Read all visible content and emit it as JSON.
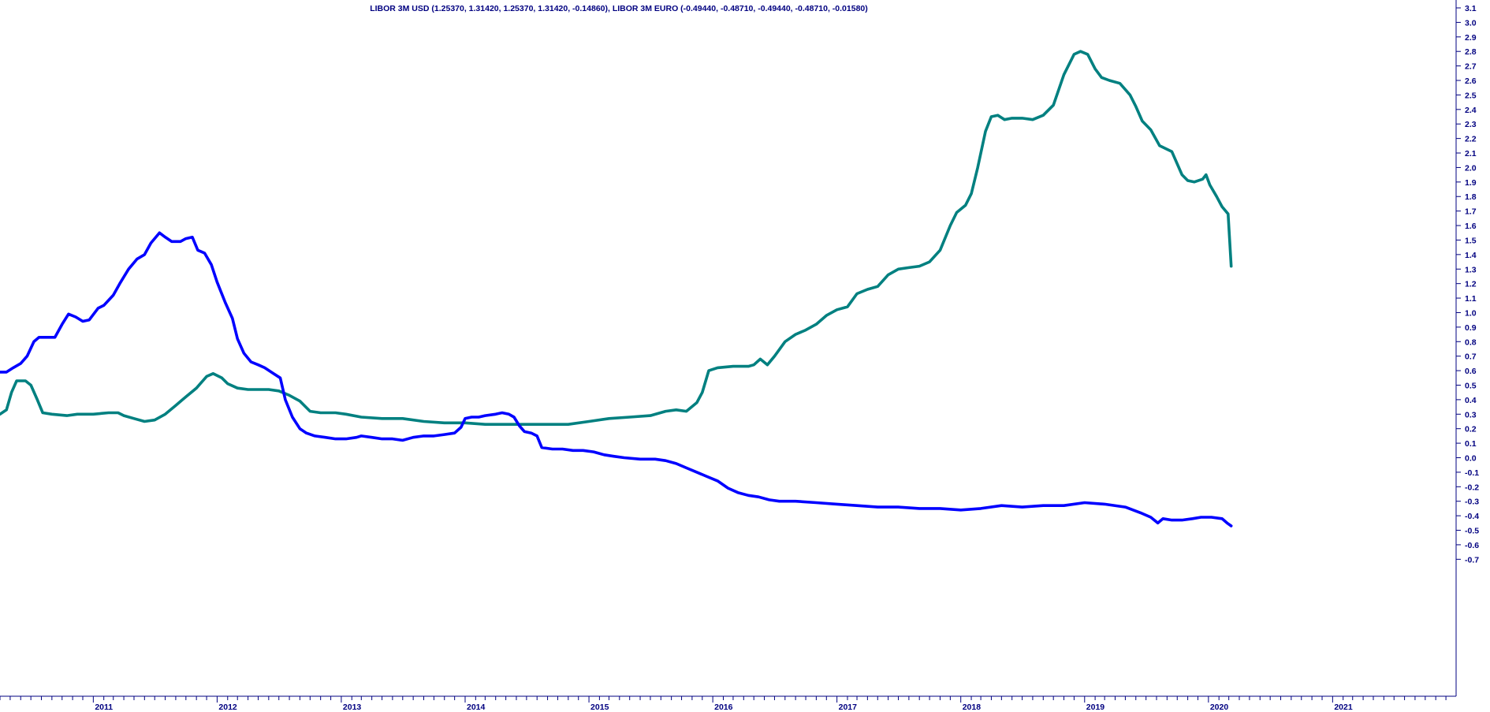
{
  "chart_data": {
    "type": "line",
    "title": "LIBOR 3M USD (1.25370, 1.31420, 1.25370, 1.31420, -0.14860), LIBOR 3M EURO (-0.49440, -0.48710, -0.49440, -0.48710, -0.01580)",
    "xlabel": "",
    "ylabel": "",
    "ylim": [
      -0.8,
      3.15
    ],
    "xlim": [
      "2010-04-01",
      "2021-12-31"
    ],
    "grid": false,
    "y_ticks": [
      "3.1",
      "3.0",
      "2.9",
      "2.8",
      "2.7",
      "2.6",
      "2.5",
      "2.4",
      "2.3",
      "2.2",
      "2.1",
      "2.0",
      "1.9",
      "1.8",
      "1.7",
      "1.6",
      "1.5",
      "1.4",
      "1.3",
      "1.2",
      "1.1",
      "1.0",
      "0.9",
      "0.8",
      "0.7",
      "0.6",
      "0.5",
      "0.4",
      "0.3",
      "0.2",
      "0.1",
      "0.0",
      "-0.1",
      "-0.2",
      "-0.3",
      "-0.4",
      "-0.5",
      "-0.6",
      "-0.7"
    ],
    "x_ticks": [
      "2011",
      "2012",
      "2013",
      "2014",
      "2015",
      "2016",
      "2017",
      "2018",
      "2019",
      "2020",
      "2021"
    ],
    "series": [
      {
        "name": "LIBOR 3M USD",
        "color": "#008080",
        "points": [
          [
            "2010-04-01",
            0.3
          ],
          [
            "2010-04-20",
            0.33
          ],
          [
            "2010-05-05",
            0.45
          ],
          [
            "2010-05-20",
            0.53
          ],
          [
            "2010-06-15",
            0.53
          ],
          [
            "2010-07-01",
            0.5
          ],
          [
            "2010-07-20",
            0.4
          ],
          [
            "2010-08-05",
            0.31
          ],
          [
            "2010-09-01",
            0.3
          ],
          [
            "2010-10-15",
            0.29
          ],
          [
            "2010-11-15",
            0.3
          ],
          [
            "2011-01-01",
            0.3
          ],
          [
            "2011-02-15",
            0.31
          ],
          [
            "2011-03-15",
            0.31
          ],
          [
            "2011-04-01",
            0.29
          ],
          [
            "2011-05-01",
            0.27
          ],
          [
            "2011-06-01",
            0.25
          ],
          [
            "2011-07-01",
            0.26
          ],
          [
            "2011-08-01",
            0.3
          ],
          [
            "2011-09-01",
            0.36
          ],
          [
            "2011-10-01",
            0.42
          ],
          [
            "2011-11-01",
            0.48
          ],
          [
            "2011-12-01",
            0.56
          ],
          [
            "2011-12-20",
            0.58
          ],
          [
            "2012-01-15",
            0.55
          ],
          [
            "2012-02-01",
            0.51
          ],
          [
            "2012-03-01",
            0.48
          ],
          [
            "2012-04-01",
            0.47
          ],
          [
            "2012-05-01",
            0.47
          ],
          [
            "2012-06-01",
            0.47
          ],
          [
            "2012-07-01",
            0.46
          ],
          [
            "2012-08-01",
            0.43
          ],
          [
            "2012-09-01",
            0.39
          ],
          [
            "2012-10-01",
            0.32
          ],
          [
            "2012-11-01",
            0.31
          ],
          [
            "2012-12-15",
            0.31
          ],
          [
            "2013-01-15",
            0.3
          ],
          [
            "2013-03-01",
            0.28
          ],
          [
            "2013-05-01",
            0.27
          ],
          [
            "2013-07-01",
            0.27
          ],
          [
            "2013-09-01",
            0.25
          ],
          [
            "2013-11-01",
            0.24
          ],
          [
            "2014-01-01",
            0.24
          ],
          [
            "2014-03-01",
            0.23
          ],
          [
            "2014-05-01",
            0.23
          ],
          [
            "2014-07-01",
            0.23
          ],
          [
            "2014-09-01",
            0.23
          ],
          [
            "2014-11-01",
            0.23
          ],
          [
            "2015-01-01",
            0.25
          ],
          [
            "2015-03-01",
            0.27
          ],
          [
            "2015-05-01",
            0.28
          ],
          [
            "2015-07-01",
            0.29
          ],
          [
            "2015-08-15",
            0.32
          ],
          [
            "2015-09-15",
            0.33
          ],
          [
            "2015-10-15",
            0.32
          ],
          [
            "2015-11-15",
            0.38
          ],
          [
            "2015-12-01",
            0.45
          ],
          [
            "2015-12-20",
            0.6
          ],
          [
            "2016-01-15",
            0.62
          ],
          [
            "2016-03-01",
            0.63
          ],
          [
            "2016-04-15",
            0.63
          ],
          [
            "2016-05-01",
            0.64
          ],
          [
            "2016-05-20",
            0.68
          ],
          [
            "2016-06-10",
            0.64
          ],
          [
            "2016-07-01",
            0.7
          ],
          [
            "2016-08-01",
            0.8
          ],
          [
            "2016-09-01",
            0.85
          ],
          [
            "2016-10-01",
            0.88
          ],
          [
            "2016-11-01",
            0.92
          ],
          [
            "2016-12-01",
            0.98
          ],
          [
            "2017-01-01",
            1.02
          ],
          [
            "2017-02-01",
            1.04
          ],
          [
            "2017-03-01",
            1.13
          ],
          [
            "2017-04-01",
            1.16
          ],
          [
            "2017-05-01",
            1.18
          ],
          [
            "2017-06-01",
            1.26
          ],
          [
            "2017-07-01",
            1.3
          ],
          [
            "2017-08-01",
            1.31
          ],
          [
            "2017-09-01",
            1.32
          ],
          [
            "2017-10-01",
            1.35
          ],
          [
            "2017-11-01",
            1.43
          ],
          [
            "2017-12-01",
            1.6
          ],
          [
            "2017-12-20",
            1.69
          ],
          [
            "2018-01-15",
            1.74
          ],
          [
            "2018-02-01",
            1.82
          ],
          [
            "2018-02-20",
            2.0
          ],
          [
            "2018-03-15",
            2.25
          ],
          [
            "2018-04-01",
            2.35
          ],
          [
            "2018-04-20",
            2.36
          ],
          [
            "2018-05-10",
            2.33
          ],
          [
            "2018-06-01",
            2.34
          ],
          [
            "2018-07-01",
            2.34
          ],
          [
            "2018-08-01",
            2.33
          ],
          [
            "2018-09-01",
            2.36
          ],
          [
            "2018-10-01",
            2.43
          ],
          [
            "2018-11-01",
            2.64
          ],
          [
            "2018-12-01",
            2.78
          ],
          [
            "2018-12-20",
            2.8
          ],
          [
            "2019-01-10",
            2.78
          ],
          [
            "2019-02-01",
            2.68
          ],
          [
            "2019-02-20",
            2.62
          ],
          [
            "2019-03-15",
            2.6
          ],
          [
            "2019-04-15",
            2.58
          ],
          [
            "2019-05-15",
            2.5
          ],
          [
            "2019-06-01",
            2.42
          ],
          [
            "2019-06-20",
            2.32
          ],
          [
            "2019-07-15",
            2.26
          ],
          [
            "2019-08-10",
            2.15
          ],
          [
            "2019-09-15",
            2.11
          ],
          [
            "2019-10-15",
            1.95
          ],
          [
            "2019-11-01",
            1.91
          ],
          [
            "2019-11-20",
            1.9
          ],
          [
            "2019-12-15",
            1.92
          ],
          [
            "2019-12-25",
            1.95
          ],
          [
            "2020-01-05",
            1.88
          ],
          [
            "2020-01-25",
            1.8
          ],
          [
            "2020-02-10",
            1.73
          ],
          [
            "2020-02-28",
            1.68
          ],
          [
            "2020-03-08",
            1.32
          ]
        ]
      },
      {
        "name": "LIBOR 3M EURO",
        "color": "#0000ff",
        "points": [
          [
            "2010-04-01",
            0.59
          ],
          [
            "2010-04-20",
            0.59
          ],
          [
            "2010-05-10",
            0.62
          ],
          [
            "2010-06-01",
            0.65
          ],
          [
            "2010-06-20",
            0.7
          ],
          [
            "2010-07-10",
            0.8
          ],
          [
            "2010-07-25",
            0.83
          ],
          [
            "2010-08-15",
            0.83
          ],
          [
            "2010-09-10",
            0.83
          ],
          [
            "2010-10-01",
            0.92
          ],
          [
            "2010-10-20",
            0.99
          ],
          [
            "2010-11-10",
            0.97
          ],
          [
            "2010-12-01",
            0.94
          ],
          [
            "2010-12-20",
            0.95
          ],
          [
            "2011-01-15",
            1.03
          ],
          [
            "2011-02-01",
            1.05
          ],
          [
            "2011-03-01",
            1.12
          ],
          [
            "2011-03-20",
            1.2
          ],
          [
            "2011-04-15",
            1.3
          ],
          [
            "2011-05-10",
            1.37
          ],
          [
            "2011-06-01",
            1.4
          ],
          [
            "2011-06-20",
            1.48
          ],
          [
            "2011-07-15",
            1.55
          ],
          [
            "2011-08-01",
            1.52
          ],
          [
            "2011-08-20",
            1.49
          ],
          [
            "2011-09-15",
            1.49
          ],
          [
            "2011-10-01",
            1.51
          ],
          [
            "2011-10-20",
            1.52
          ],
          [
            "2011-11-05",
            1.43
          ],
          [
            "2011-11-25",
            1.41
          ],
          [
            "2011-12-15",
            1.33
          ],
          [
            "2012-01-01",
            1.21
          ],
          [
            "2012-01-25",
            1.07
          ],
          [
            "2012-02-15",
            0.96
          ],
          [
            "2012-03-01",
            0.82
          ],
          [
            "2012-03-20",
            0.72
          ],
          [
            "2012-04-10",
            0.66
          ],
          [
            "2012-05-01",
            0.64
          ],
          [
            "2012-05-20",
            0.62
          ],
          [
            "2012-06-15",
            0.58
          ],
          [
            "2012-07-05",
            0.55
          ],
          [
            "2012-07-20",
            0.4
          ],
          [
            "2012-08-10",
            0.28
          ],
          [
            "2012-09-01",
            0.2
          ],
          [
            "2012-09-20",
            0.17
          ],
          [
            "2012-10-15",
            0.15
          ],
          [
            "2012-11-15",
            0.14
          ],
          [
            "2012-12-15",
            0.13
          ],
          [
            "2013-01-15",
            0.13
          ],
          [
            "2013-02-15",
            0.14
          ],
          [
            "2013-03-01",
            0.15
          ],
          [
            "2013-04-01",
            0.14
          ],
          [
            "2013-05-01",
            0.13
          ],
          [
            "2013-06-01",
            0.13
          ],
          [
            "2013-07-01",
            0.12
          ],
          [
            "2013-08-01",
            0.14
          ],
          [
            "2013-09-01",
            0.15
          ],
          [
            "2013-10-01",
            0.15
          ],
          [
            "2013-11-01",
            0.16
          ],
          [
            "2013-12-01",
            0.17
          ],
          [
            "2013-12-20",
            0.21
          ],
          [
            "2014-01-01",
            0.27
          ],
          [
            "2014-01-20",
            0.28
          ],
          [
            "2014-02-10",
            0.28
          ],
          [
            "2014-03-01",
            0.29
          ],
          [
            "2014-04-01",
            0.3
          ],
          [
            "2014-04-20",
            0.31
          ],
          [
            "2014-05-10",
            0.3
          ],
          [
            "2014-05-25",
            0.28
          ],
          [
            "2014-06-10",
            0.22
          ],
          [
            "2014-06-25",
            0.18
          ],
          [
            "2014-07-15",
            0.17
          ],
          [
            "2014-08-01",
            0.15
          ],
          [
            "2014-08-15",
            0.07
          ],
          [
            "2014-09-15",
            0.06
          ],
          [
            "2014-10-15",
            0.06
          ],
          [
            "2014-11-15",
            0.05
          ],
          [
            "2014-12-15",
            0.05
          ],
          [
            "2015-01-15",
            0.04
          ],
          [
            "2015-02-15",
            0.02
          ],
          [
            "2015-03-15",
            0.01
          ],
          [
            "2015-04-15",
            0.0
          ],
          [
            "2015-06-01",
            -0.01
          ],
          [
            "2015-07-15",
            -0.01
          ],
          [
            "2015-08-15",
            -0.02
          ],
          [
            "2015-09-15",
            -0.04
          ],
          [
            "2015-10-15",
            -0.07
          ],
          [
            "2015-11-15",
            -0.1
          ],
          [
            "2015-12-15",
            -0.13
          ],
          [
            "2016-01-15",
            -0.16
          ],
          [
            "2016-02-15",
            -0.21
          ],
          [
            "2016-03-15",
            -0.24
          ],
          [
            "2016-04-15",
            -0.26
          ],
          [
            "2016-05-15",
            -0.27
          ],
          [
            "2016-06-15",
            -0.29
          ],
          [
            "2016-07-15",
            -0.3
          ],
          [
            "2016-09-01",
            -0.3
          ],
          [
            "2016-11-01",
            -0.31
          ],
          [
            "2017-01-01",
            -0.32
          ],
          [
            "2017-03-01",
            -0.33
          ],
          [
            "2017-05-01",
            -0.34
          ],
          [
            "2017-07-01",
            -0.34
          ],
          [
            "2017-09-01",
            -0.35
          ],
          [
            "2017-11-01",
            -0.35
          ],
          [
            "2018-01-01",
            -0.36
          ],
          [
            "2018-03-01",
            -0.35
          ],
          [
            "2018-05-01",
            -0.33
          ],
          [
            "2018-07-01",
            -0.34
          ],
          [
            "2018-09-01",
            -0.33
          ],
          [
            "2018-11-01",
            -0.33
          ],
          [
            "2019-01-01",
            -0.31
          ],
          [
            "2019-03-01",
            -0.32
          ],
          [
            "2019-05-01",
            -0.34
          ],
          [
            "2019-06-15",
            -0.38
          ],
          [
            "2019-07-15",
            -0.41
          ],
          [
            "2019-08-05",
            -0.45
          ],
          [
            "2019-08-20",
            -0.42
          ],
          [
            "2019-09-15",
            -0.43
          ],
          [
            "2019-10-15",
            -0.43
          ],
          [
            "2019-11-15",
            -0.42
          ],
          [
            "2019-12-10",
            -0.41
          ],
          [
            "2020-01-10",
            -0.41
          ],
          [
            "2020-02-10",
            -0.42
          ],
          [
            "2020-02-25",
            -0.45
          ],
          [
            "2020-03-08",
            -0.47
          ]
        ]
      }
    ]
  }
}
